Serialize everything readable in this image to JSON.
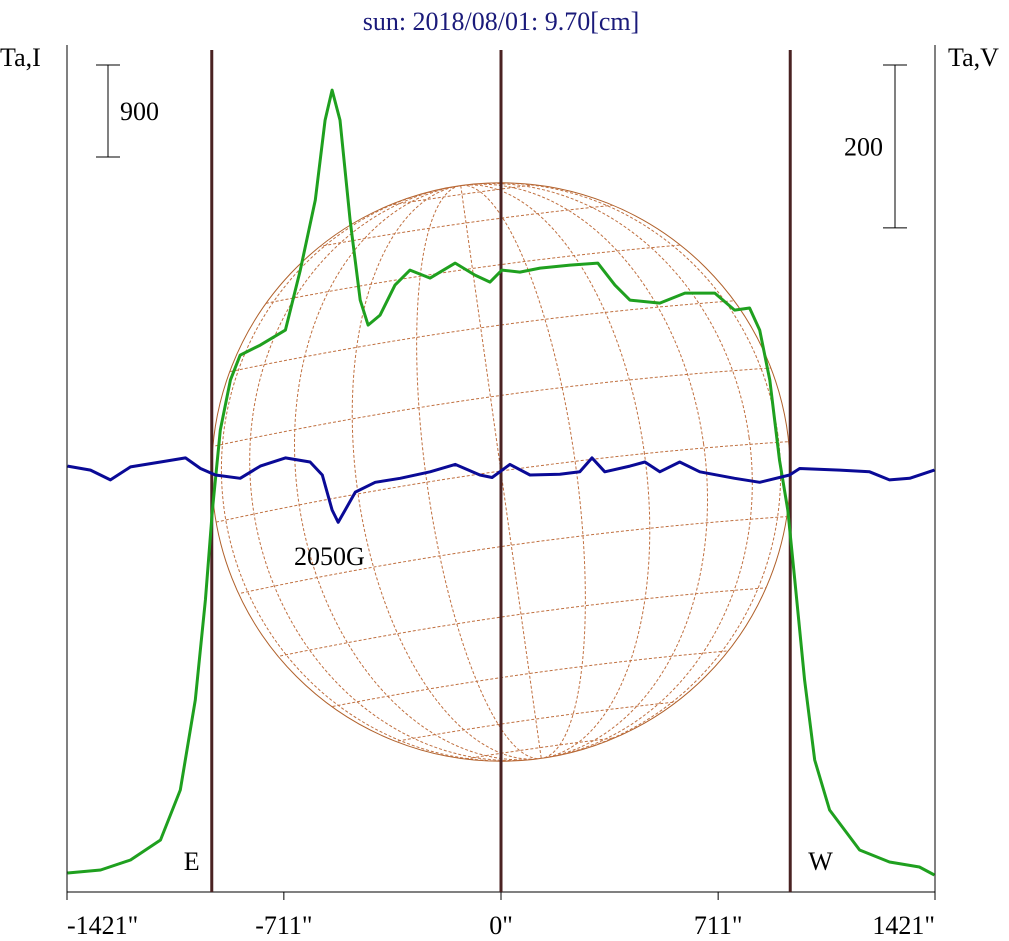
{
  "chart_data": {
    "type": "line",
    "title": "sun: 2018/08/01: 9.70[cm]",
    "ylabel": "Ta,I",
    "y2label": "Ta,V",
    "xlim": [
      -1421,
      1421
    ],
    "xticks": [
      {
        "value": -1421,
        "label": "-1421\""
      },
      {
        "value": -711,
        "label": "-711\""
      },
      {
        "value": 0,
        "label": "0\""
      },
      {
        "value": 711,
        "label": "711\""
      },
      {
        "value": 1421,
        "label": "1421\""
      }
    ],
    "ylim": [
      0,
      8285
    ],
    "y2lim": [
      -518,
      522
    ],
    "vlines": [
      -947,
      0,
      947
    ],
    "disk_radius": 947,
    "limb_labels": [
      {
        "label": "E",
        "x": -947
      },
      {
        "label": "W",
        "x": 947
      }
    ],
    "scale_bars": [
      {
        "axis": "y",
        "value": 900
      },
      {
        "axis": "y2",
        "value": 200
      }
    ],
    "annotations": [
      "2050G"
    ],
    "series": [
      {
        "color": "#1fa01f",
        "x": [
          -1419,
          -1311,
          -1213,
          -1115,
          -1050,
          -1001,
          -968,
          -945,
          -919,
          -886,
          -854,
          -788,
          -706,
          -657,
          -608,
          -576,
          -553,
          -527,
          -494,
          -461,
          -435,
          -396,
          -347,
          -298,
          -232,
          -150,
          -85,
          -36,
          3,
          62,
          128,
          226,
          317,
          373,
          422,
          520,
          602,
          700,
          765,
          814,
          847,
          880,
          912,
          939,
          962,
          994,
          1027,
          1076,
          1174,
          1272,
          1370,
          1419
        ],
        "values": [
          186,
          215,
          313,
          509,
          998,
          1878,
          2856,
          3736,
          4518,
          5007,
          5252,
          5350,
          5496,
          6083,
          6768,
          7550,
          7844,
          7550,
          6572,
          5790,
          5545,
          5643,
          5936,
          6083,
          6005,
          6152,
          6034,
          5966,
          6083,
          6064,
          6103,
          6132,
          6152,
          5936,
          5790,
          5760,
          5858,
          5858,
          5692,
          5712,
          5496,
          5007,
          4225,
          3736,
          3051,
          2073,
          1291,
          802,
          411,
          293,
          245,
          166
        ]
      },
      {
        "color": "#0a0a96",
        "axis": "y2",
        "x": [
          -1419,
          -1344,
          -1279,
          -1213,
          -1115,
          -1033,
          -984,
          -935,
          -854,
          -788,
          -706,
          -625,
          -585,
          -553,
          -533,
          -510,
          -477,
          -412,
          -330,
          -232,
          -150,
          -69,
          -29,
          29,
          95,
          193,
          258,
          298,
          340,
          422,
          471,
          520,
          585,
          651,
          765,
          847,
          945,
          978,
          1109,
          1207,
          1272,
          1338,
          1419
        ],
        "values": [
          5,
          0,
          -12,
          4,
          10,
          15,
          2,
          -6,
          -10,
          5,
          15,
          10,
          -6,
          -49,
          -64,
          -49,
          -27,
          -15,
          -10,
          -2,
          7,
          -6,
          -9,
          7,
          -6,
          -5,
          -2,
          15,
          -2,
          5,
          10,
          -2,
          10,
          -2,
          -10,
          -15,
          -6,
          2,
          0,
          -2,
          -12,
          -10,
          0
        ]
      }
    ]
  }
}
